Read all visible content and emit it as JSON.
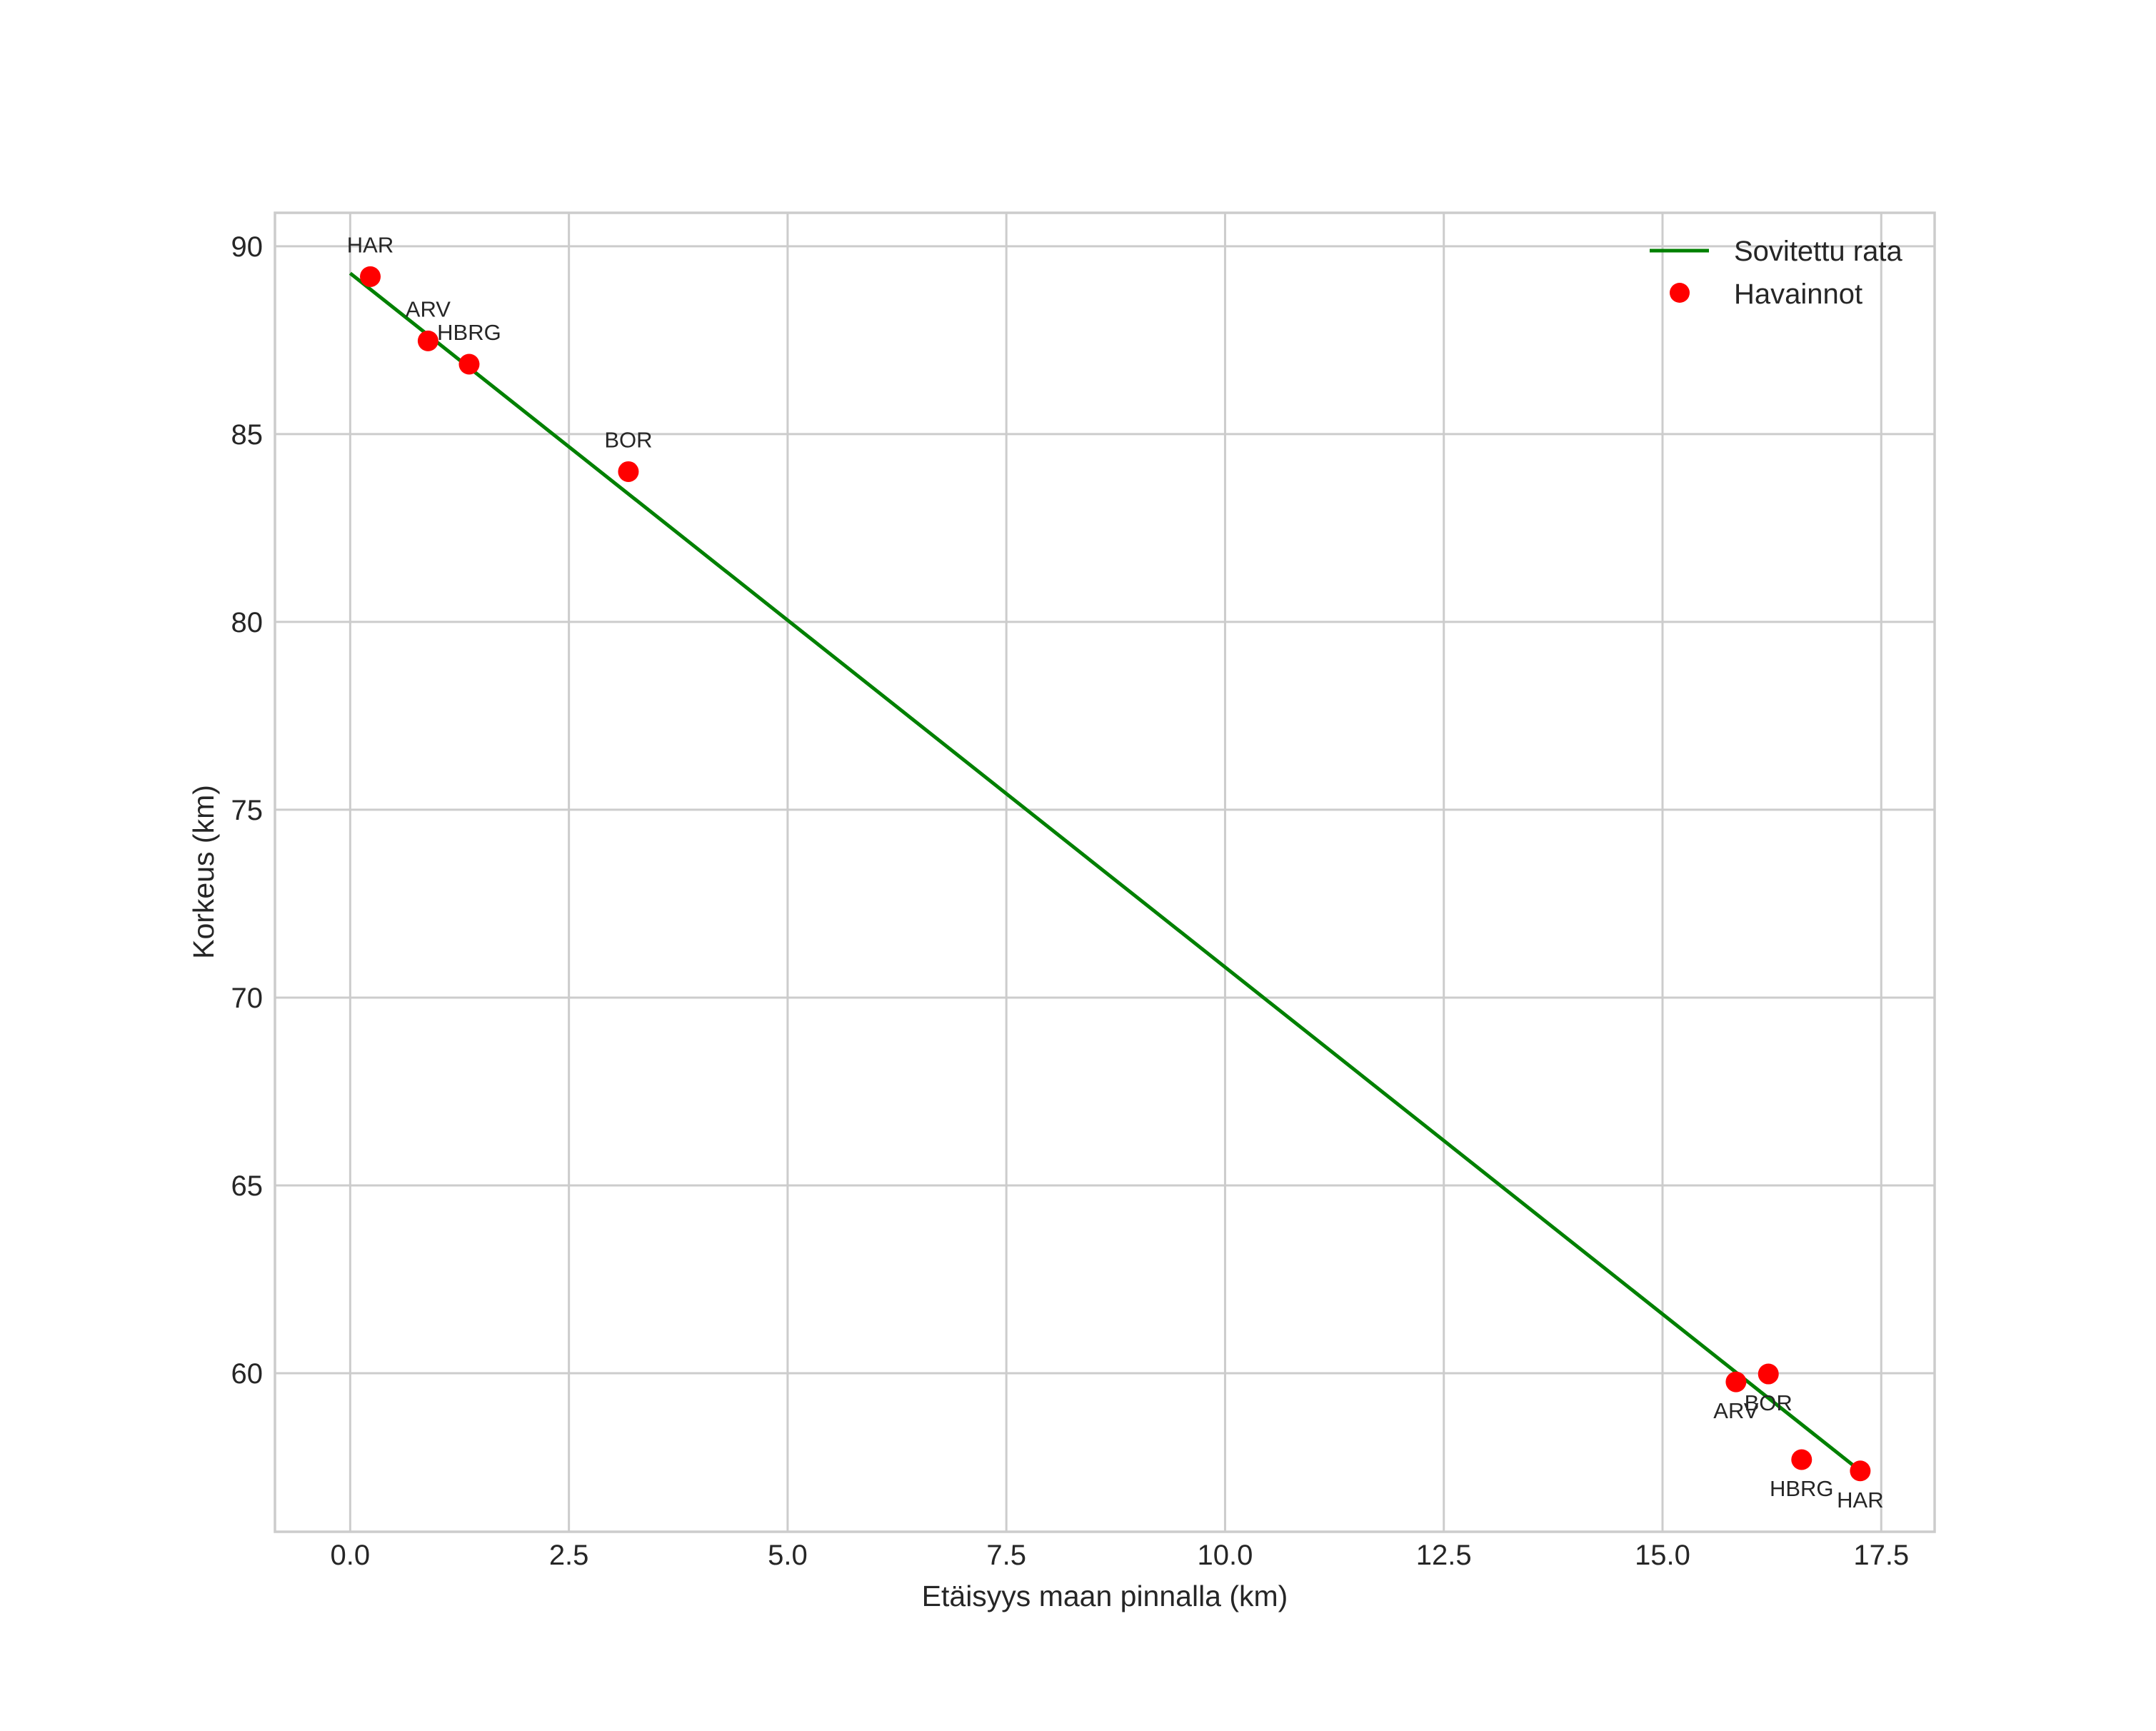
{
  "chart_data": {
    "type": "scatter",
    "title": "",
    "xlabel": "Etäisyys maan pinnalla (km)",
    "ylabel": "Korkeus (km)",
    "xlim": [
      -0.86,
      18.11
    ],
    "ylim": [
      55.78,
      90.89
    ],
    "xticks": [
      0.0,
      2.5,
      5.0,
      7.5,
      10.0,
      12.5,
      15.0,
      17.5
    ],
    "xtick_labels": [
      "0.0",
      "2.5",
      "5.0",
      "7.5",
      "10.0",
      "12.5",
      "15.0",
      "17.5"
    ],
    "yticks": [
      60,
      65,
      70,
      75,
      80,
      85,
      90
    ],
    "ytick_labels": [
      "60",
      "65",
      "70",
      "75",
      "80",
      "85",
      "90"
    ],
    "grid": true,
    "legend_position": "upper right",
    "series": [
      {
        "name": "Sovitettu rata",
        "type": "line",
        "color": "#008000",
        "x": [
          0.0,
          17.26
        ],
        "y": [
          89.28,
          57.4
        ]
      },
      {
        "name": "Havainnot",
        "type": "scatter",
        "color": "#ff0000",
        "points": [
          {
            "label": "HAR",
            "x": 0.23,
            "y": 89.19,
            "label_pos": "above"
          },
          {
            "label": "ARV",
            "x": 0.89,
            "y": 87.48,
            "label_pos": "above"
          },
          {
            "label": "HBRG",
            "x": 1.36,
            "y": 86.86,
            "label_pos": "above"
          },
          {
            "label": "BOR",
            "x": 3.18,
            "y": 84.0,
            "label_pos": "above"
          },
          {
            "label": "ARV",
            "x": 15.84,
            "y": 59.77,
            "label_pos": "below"
          },
          {
            "label": "BOR",
            "x": 16.21,
            "y": 59.98,
            "label_pos": "below"
          },
          {
            "label": "HBRG",
            "x": 16.59,
            "y": 57.7,
            "label_pos": "below"
          },
          {
            "label": "HAR",
            "x": 17.26,
            "y": 57.4,
            "label_pos": "below"
          }
        ]
      }
    ]
  },
  "legend": {
    "items": [
      {
        "label": "Sovitettu rata",
        "marker": "line",
        "color": "#008000"
      },
      {
        "label": "Havainnot",
        "marker": "dot",
        "color": "#ff0000"
      }
    ]
  },
  "colors": {
    "grid": "#cccccc",
    "frame": "#cccccc",
    "text": "#262626",
    "background": "#ffffff"
  }
}
